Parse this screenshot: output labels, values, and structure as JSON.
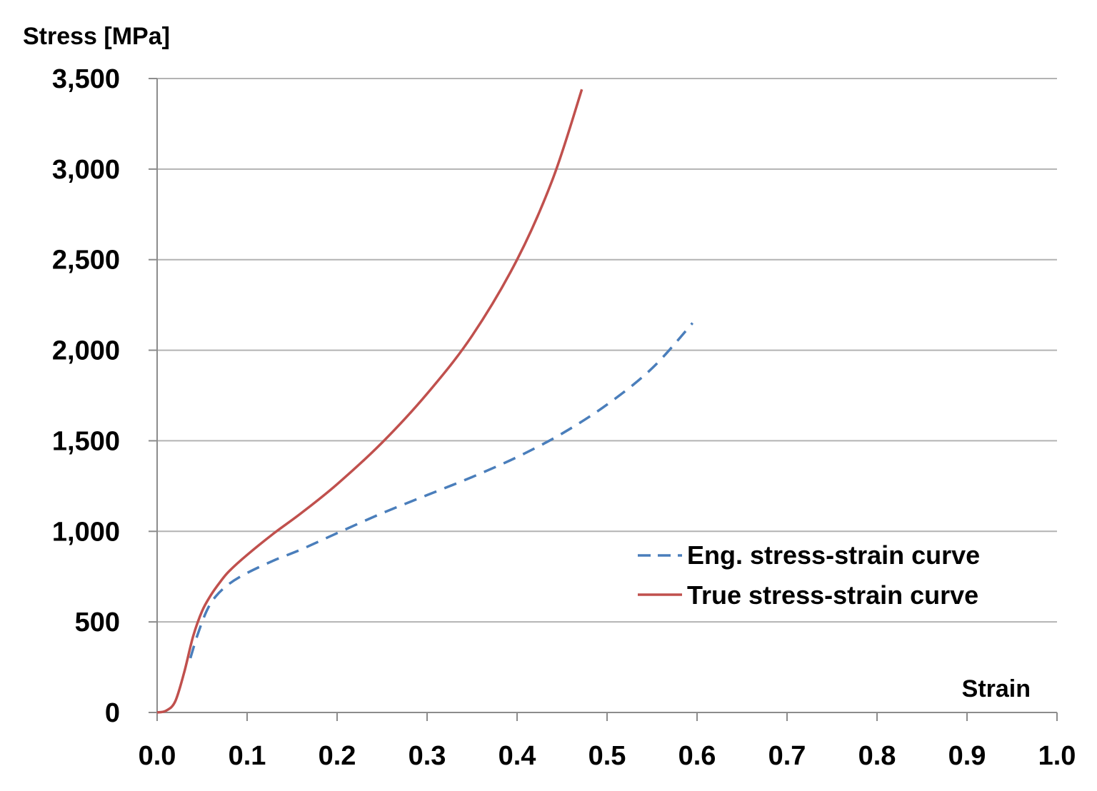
{
  "chart_data": {
    "type": "line",
    "title": "",
    "xlabel": "Strain",
    "ylabel": "Stress [MPa]",
    "xlim": [
      0.0,
      1.0
    ],
    "ylim": [
      0,
      3500
    ],
    "x_ticks": [
      0.0,
      0.1,
      0.2,
      0.3,
      0.4,
      0.5,
      0.6,
      0.7,
      0.8,
      0.9,
      1.0
    ],
    "x_tick_labels": [
      "0.0",
      "0.1",
      "0.2",
      "0.3",
      "0.4",
      "0.5",
      "0.6",
      "0.7",
      "0.8",
      "0.9",
      "1.0"
    ],
    "y_ticks": [
      0,
      500,
      1000,
      1500,
      2000,
      2500,
      3000,
      3500
    ],
    "y_tick_labels": [
      "0",
      "500",
      "1,000",
      "1,500",
      "2,000",
      "2,500",
      "3,000",
      "3,500"
    ],
    "grid": "horizontal",
    "legend_position": "center-right",
    "series": [
      {
        "name": "Eng. stress-strain curve",
        "color": "#4a7ebb",
        "dash": "dashed",
        "x": [
          0.037,
          0.045,
          0.055,
          0.065,
          0.08,
          0.1,
          0.13,
          0.16,
          0.2,
          0.25,
          0.3,
          0.35,
          0.4,
          0.45,
          0.5,
          0.55,
          0.595
        ],
        "y": [
          300,
          430,
          560,
          640,
          710,
          770,
          840,
          900,
          990,
          1100,
          1200,
          1300,
          1410,
          1540,
          1700,
          1900,
          2150
        ]
      },
      {
        "name": "True stress-strain curve",
        "color": "#c0504d",
        "dash": "solid",
        "x": [
          0.0,
          0.01,
          0.02,
          0.03,
          0.04,
          0.05,
          0.06,
          0.07,
          0.08,
          0.1,
          0.13,
          0.16,
          0.2,
          0.25,
          0.3,
          0.35,
          0.4,
          0.44,
          0.472
        ],
        "y": [
          0,
          10,
          60,
          220,
          420,
          560,
          650,
          720,
          780,
          870,
          990,
          1100,
          1260,
          1490,
          1760,
          2080,
          2500,
          2950,
          3440
        ]
      }
    ]
  }
}
